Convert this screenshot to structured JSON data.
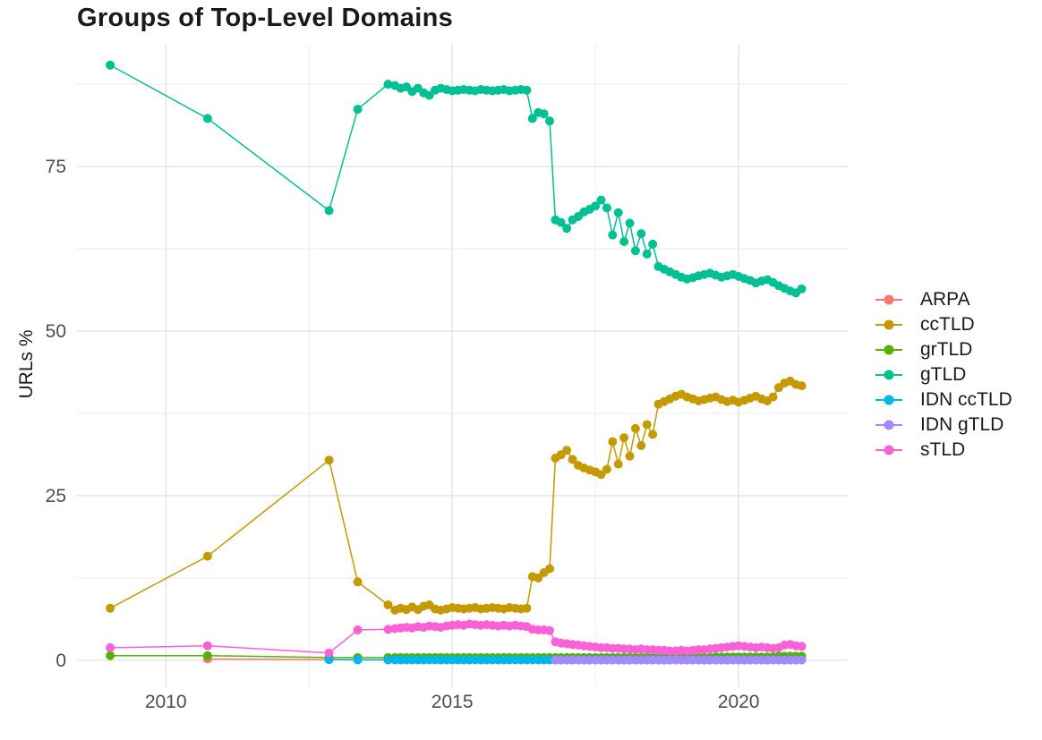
{
  "colors": {
    "background": "#ffffff",
    "grid_major": "#e2e2e2",
    "grid_minor": "#ededed",
    "tick_label": "#4d4d4d",
    "title": "#1a1a1a",
    "axis_title": "#1a1a1a"
  },
  "chart_data": {
    "type": "line",
    "title": "Groups of Top-Level Domains",
    "xlabel": "",
    "ylabel": "URLs %",
    "grid": true,
    "legend_position": "right",
    "x_ticks": [
      2010,
      2015,
      2020
    ],
    "x_minor_ticks": [
      2012.5,
      2017.5
    ],
    "y_ticks": [
      0,
      25,
      50,
      75
    ],
    "y_minor_ticks": [
      12.5,
      37.5,
      62.5,
      87.5
    ],
    "xlim": [
      2008.45,
      2021.92
    ],
    "ylim": [
      -4.1,
      93.5
    ],
    "series": [
      {
        "name": "ARPA",
        "color": "#F8766D",
        "x": [
          2010.73,
          2012.85,
          2014.0,
          2014.1,
          2014.2,
          2014.3,
          2014.4,
          2014.5,
          2014.6,
          2014.7,
          2014.8,
          2014.9,
          2015.0,
          2015.1,
          2015.2,
          2015.3,
          2015.4,
          2015.5,
          2015.6,
          2015.7,
          2015.8,
          2015.9,
          2016.0,
          2016.1,
          2016.2,
          2016.3,
          2016.4,
          2016.5,
          2016.6,
          2016.7,
          2016.8,
          2016.9,
          2017.0,
          2017.1,
          2017.2,
          2017.3,
          2017.4,
          2017.5,
          2017.6,
          2017.7,
          2017.8,
          2017.9,
          2018.0,
          2018.1,
          2018.2,
          2018.3,
          2018.4,
          2018.5,
          2018.6,
          2018.7,
          2018.8,
          2018.9,
          2019.0,
          2019.1,
          2019.2,
          2019.3,
          2019.4,
          2019.5,
          2019.6,
          2019.7,
          2019.8,
          2019.9,
          2020.0,
          2020.1,
          2020.2,
          2020.3,
          2020.4,
          2020.5,
          2020.6,
          2020.7,
          2020.8,
          2020.9,
          2021.0,
          2021.1
        ],
        "y": [
          0.2,
          0.1,
          0.1,
          0.1,
          0.1,
          0.1,
          0.1,
          0.1,
          0.1,
          0.1,
          0.1,
          0.1,
          0.1,
          0.1,
          0.1,
          0.1,
          0.1,
          0.1,
          0.1,
          0.1,
          0.1,
          0.1,
          0.1,
          0.1,
          0.1,
          0.1,
          0.1,
          0.1,
          0.1,
          0.1,
          0.1,
          0.1,
          0.1,
          0.1,
          0.1,
          0.1,
          0.1,
          0.1,
          0.1,
          0.1,
          0.1,
          0.1,
          0.1,
          0.1,
          0.1,
          0.1,
          0.1,
          0.1,
          0.1,
          0.1,
          0.1,
          0.1,
          0.1,
          0.1,
          0.1,
          0.1,
          0.1,
          0.1,
          0.1,
          0.1,
          0.1,
          0.1,
          0.1,
          0.1,
          0.1,
          0.1,
          0.1,
          0.1,
          0.1,
          0.1,
          0.1,
          0.1,
          0.1,
          0.1
        ]
      },
      {
        "name": "ccTLD",
        "color": "#C49A00",
        "x": [
          2009.03,
          2010.73,
          2012.85,
          2013.35,
          2013.88,
          2014.0,
          2014.1,
          2014.2,
          2014.3,
          2014.4,
          2014.5,
          2014.6,
          2014.7,
          2014.8,
          2014.9,
          2015.0,
          2015.1,
          2015.2,
          2015.3,
          2015.4,
          2015.5,
          2015.6,
          2015.7,
          2015.8,
          2015.9,
          2016.0,
          2016.1,
          2016.2,
          2016.3,
          2016.4,
          2016.5,
          2016.6,
          2016.7,
          2016.8,
          2016.9,
          2017.0,
          2017.1,
          2017.2,
          2017.3,
          2017.4,
          2017.5,
          2017.6,
          2017.7,
          2017.8,
          2017.9,
          2018.0,
          2018.1,
          2018.2,
          2018.3,
          2018.4,
          2018.5,
          2018.6,
          2018.7,
          2018.8,
          2018.9,
          2019.0,
          2019.1,
          2019.2,
          2019.3,
          2019.4,
          2019.5,
          2019.6,
          2019.7,
          2019.8,
          2019.9,
          2020.0,
          2020.1,
          2020.2,
          2020.3,
          2020.4,
          2020.5,
          2020.6,
          2020.7,
          2020.8,
          2020.9,
          2021.0,
          2021.1
        ],
        "y": [
          7.9,
          15.8,
          30.4,
          11.9,
          8.4,
          7.6,
          7.9,
          7.7,
          8.1,
          7.7,
          8.2,
          8.4,
          7.8,
          7.6,
          7.8,
          8.0,
          7.9,
          7.8,
          7.9,
          8.0,
          7.8,
          7.9,
          8.0,
          7.9,
          7.8,
          8.0,
          7.9,
          7.8,
          7.9,
          12.7,
          12.5,
          13.3,
          13.9,
          30.7,
          31.2,
          31.9,
          30.5,
          29.6,
          29.2,
          28.9,
          28.6,
          28.2,
          29.0,
          33.2,
          29.8,
          33.8,
          31.0,
          35.2,
          32.6,
          35.8,
          34.3,
          38.9,
          39.3,
          39.7,
          40.1,
          40.4,
          40.0,
          39.7,
          39.4,
          39.6,
          39.8,
          40.0,
          39.6,
          39.3,
          39.5,
          39.2,
          39.5,
          39.8,
          40.1,
          39.7,
          39.4,
          40.0,
          41.4,
          42.1,
          42.4,
          41.9,
          41.7
        ]
      },
      {
        "name": "grTLD",
        "color": "#53B400",
        "x": [
          2009.03,
          2010.73,
          2012.85,
          2013.35,
          2013.88,
          2014.0,
          2014.1,
          2014.2,
          2014.3,
          2014.4,
          2014.5,
          2014.6,
          2014.7,
          2014.8,
          2014.9,
          2015.0,
          2015.1,
          2015.2,
          2015.3,
          2015.4,
          2015.5,
          2015.6,
          2015.7,
          2015.8,
          2015.9,
          2016.0,
          2016.1,
          2016.2,
          2016.3,
          2016.4,
          2016.5,
          2016.6,
          2016.7,
          2016.8,
          2016.9,
          2017.0,
          2017.1,
          2017.2,
          2017.3,
          2017.4,
          2017.5,
          2017.6,
          2017.7,
          2017.8,
          2017.9,
          2018.0,
          2018.1,
          2018.2,
          2018.3,
          2018.4,
          2018.5,
          2018.6,
          2018.7,
          2018.8,
          2018.9,
          2019.0,
          2019.1,
          2019.2,
          2019.3,
          2019.4,
          2019.5,
          2019.6,
          2019.7,
          2019.8,
          2019.9,
          2020.0,
          2020.1,
          2020.2,
          2020.3,
          2020.4,
          2020.5,
          2020.6,
          2020.7,
          2020.8,
          2020.9,
          2021.0,
          2021.1
        ],
        "y": [
          0.7,
          0.7,
          0.4,
          0.4,
          0.4,
          0.4,
          0.4,
          0.4,
          0.4,
          0.4,
          0.4,
          0.4,
          0.4,
          0.4,
          0.4,
          0.4,
          0.4,
          0.4,
          0.4,
          0.4,
          0.4,
          0.4,
          0.4,
          0.4,
          0.4,
          0.4,
          0.4,
          0.4,
          0.4,
          0.4,
          0.4,
          0.4,
          0.4,
          0.4,
          0.4,
          0.4,
          0.4,
          0.4,
          0.4,
          0.4,
          0.4,
          0.4,
          0.4,
          0.4,
          0.4,
          0.4,
          0.4,
          0.4,
          0.4,
          0.4,
          0.4,
          0.4,
          0.4,
          0.4,
          0.4,
          0.4,
          0.4,
          0.4,
          0.4,
          0.4,
          0.4,
          0.5,
          0.5,
          0.5,
          0.5,
          0.5,
          0.5,
          0.5,
          0.5,
          0.5,
          0.5,
          0.5,
          0.6,
          0.6,
          0.6,
          0.6,
          0.6
        ]
      },
      {
        "name": "gTLD",
        "color": "#00C094",
        "x": [
          2009.03,
          2010.73,
          2012.85,
          2013.35,
          2013.88,
          2014.0,
          2014.1,
          2014.2,
          2014.3,
          2014.4,
          2014.5,
          2014.6,
          2014.7,
          2014.8,
          2014.9,
          2015.0,
          2015.1,
          2015.2,
          2015.3,
          2015.4,
          2015.5,
          2015.6,
          2015.7,
          2015.8,
          2015.9,
          2016.0,
          2016.1,
          2016.2,
          2016.3,
          2016.4,
          2016.5,
          2016.6,
          2016.7,
          2016.8,
          2016.9,
          2017.0,
          2017.1,
          2017.2,
          2017.3,
          2017.4,
          2017.5,
          2017.6,
          2017.7,
          2017.8,
          2017.9,
          2018.0,
          2018.1,
          2018.2,
          2018.3,
          2018.4,
          2018.5,
          2018.6,
          2018.7,
          2018.8,
          2018.9,
          2019.0,
          2019.1,
          2019.2,
          2019.3,
          2019.4,
          2019.5,
          2019.6,
          2019.7,
          2019.8,
          2019.9,
          2020.0,
          2020.1,
          2020.2,
          2020.3,
          2020.4,
          2020.5,
          2020.6,
          2020.7,
          2020.8,
          2020.9,
          2021.0,
          2021.1
        ],
        "y": [
          90.4,
          82.3,
          68.3,
          83.7,
          87.5,
          87.3,
          86.9,
          87.1,
          86.4,
          86.9,
          86.2,
          85.8,
          86.6,
          86.9,
          86.7,
          86.5,
          86.6,
          86.7,
          86.6,
          86.5,
          86.7,
          86.6,
          86.5,
          86.6,
          86.7,
          86.5,
          86.6,
          86.7,
          86.6,
          82.3,
          83.2,
          83.0,
          81.9,
          66.9,
          66.5,
          65.6,
          66.9,
          67.4,
          68.1,
          68.5,
          69.0,
          69.9,
          68.7,
          64.6,
          68.0,
          63.6,
          66.4,
          62.2,
          64.8,
          61.7,
          63.2,
          59.8,
          59.4,
          59.0,
          58.6,
          58.2,
          57.9,
          58.1,
          58.4,
          58.6,
          58.8,
          58.5,
          58.2,
          58.4,
          58.6,
          58.3,
          58.0,
          57.7,
          57.3,
          57.6,
          57.8,
          57.4,
          56.9,
          56.5,
          56.1,
          55.8,
          56.4
        ]
      },
      {
        "name": "IDN ccTLD",
        "color": "#00B6EB",
        "x": [
          2012.85,
          2013.35,
          2013.88,
          2014.0,
          2014.1,
          2014.2,
          2014.3,
          2014.4,
          2014.5,
          2014.6,
          2014.7,
          2014.8,
          2014.9,
          2015.0,
          2015.1,
          2015.2,
          2015.3,
          2015.4,
          2015.5,
          2015.6,
          2015.7,
          2015.8,
          2015.9,
          2016.0,
          2016.1,
          2016.2,
          2016.3,
          2016.4,
          2016.5,
          2016.6,
          2016.7,
          2016.8,
          2016.9,
          2017.0,
          2017.1,
          2017.2,
          2017.3,
          2017.4,
          2017.5,
          2017.6,
          2017.7,
          2017.8,
          2017.9,
          2018.0,
          2018.1,
          2018.2,
          2018.3,
          2018.4,
          2018.5,
          2018.6,
          2018.7,
          2018.8,
          2018.9,
          2019.0,
          2019.1,
          2019.2,
          2019.3,
          2019.4,
          2019.5,
          2019.6,
          2019.7,
          2019.8,
          2019.9,
          2020.0,
          2020.1,
          2020.2,
          2020.3,
          2020.4,
          2020.5,
          2020.6,
          2020.7,
          2020.8,
          2020.9,
          2021.0,
          2021.1
        ],
        "y": [
          0.1,
          0.05,
          0.05,
          0.05,
          0.05,
          0.05,
          0.05,
          0.05,
          0.05,
          0.05,
          0.05,
          0.05,
          0.05,
          0.05,
          0.05,
          0.05,
          0.05,
          0.05,
          0.05,
          0.05,
          0.05,
          0.05,
          0.05,
          0.05,
          0.05,
          0.05,
          0.05,
          0.05,
          0.05,
          0.05,
          0.05,
          0.05,
          0.05,
          0.05,
          0.05,
          0.05,
          0.05,
          0.05,
          0.05,
          0.05,
          0.05,
          0.05,
          0.05,
          0.05,
          0.05,
          0.05,
          0.05,
          0.05,
          0.05,
          0.05,
          0.05,
          0.05,
          0.05,
          0.05,
          0.05,
          0.05,
          0.05,
          0.05,
          0.05,
          0.05,
          0.05,
          0.05,
          0.05,
          0.05,
          0.05,
          0.05,
          0.05,
          0.05,
          0.05,
          0.05,
          0.05,
          0.05,
          0.05,
          0.05,
          0.05
        ]
      },
      {
        "name": "IDN gTLD",
        "color": "#A58AFF",
        "x": [
          2016.8,
          2016.9,
          2017.0,
          2017.1,
          2017.2,
          2017.3,
          2017.4,
          2017.5,
          2017.6,
          2017.7,
          2017.8,
          2017.9,
          2018.0,
          2018.1,
          2018.2,
          2018.3,
          2018.4,
          2018.5,
          2018.6,
          2018.7,
          2018.8,
          2018.9,
          2019.0,
          2019.1,
          2019.2,
          2019.3,
          2019.4,
          2019.5,
          2019.6,
          2019.7,
          2019.8,
          2019.9,
          2020.0,
          2020.1,
          2020.2,
          2020.3,
          2020.4,
          2020.5,
          2020.6,
          2020.7,
          2020.8,
          2020.9,
          2021.0,
          2021.1
        ],
        "y": [
          0.03,
          0.03,
          0.03,
          0.03,
          0.03,
          0.03,
          0.03,
          0.03,
          0.03,
          0.03,
          0.03,
          0.03,
          0.03,
          0.03,
          0.03,
          0.03,
          0.03,
          0.03,
          0.03,
          0.03,
          0.03,
          0.03,
          0.03,
          0.03,
          0.03,
          0.03,
          0.03,
          0.03,
          0.03,
          0.03,
          0.03,
          0.03,
          0.03,
          0.03,
          0.03,
          0.03,
          0.03,
          0.03,
          0.03,
          0.03,
          0.03,
          0.03,
          0.03,
          0.03
        ]
      },
      {
        "name": "sTLD",
        "color": "#FB61D7",
        "x": [
          2009.03,
          2010.73,
          2012.85,
          2013.35,
          2013.88,
          2014.0,
          2014.1,
          2014.2,
          2014.3,
          2014.4,
          2014.5,
          2014.6,
          2014.7,
          2014.8,
          2014.9,
          2015.0,
          2015.1,
          2015.2,
          2015.3,
          2015.4,
          2015.5,
          2015.6,
          2015.7,
          2015.8,
          2015.9,
          2016.0,
          2016.1,
          2016.2,
          2016.3,
          2016.4,
          2016.5,
          2016.6,
          2016.7,
          2016.8,
          2016.9,
          2017.0,
          2017.1,
          2017.2,
          2017.3,
          2017.4,
          2017.5,
          2017.6,
          2017.7,
          2017.8,
          2017.9,
          2018.0,
          2018.1,
          2018.2,
          2018.3,
          2018.4,
          2018.5,
          2018.6,
          2018.7,
          2018.8,
          2018.9,
          2019.0,
          2019.1,
          2019.2,
          2019.3,
          2019.4,
          2019.5,
          2019.6,
          2019.7,
          2019.8,
          2019.9,
          2020.0,
          2020.1,
          2020.2,
          2020.3,
          2020.4,
          2020.5,
          2020.6,
          2020.7,
          2020.8,
          2020.9,
          2021.0,
          2021.1
        ],
        "y": [
          1.9,
          2.2,
          1.1,
          4.6,
          4.7,
          4.8,
          4.9,
          5.0,
          4.9,
          5.1,
          5.0,
          5.2,
          5.1,
          5.0,
          5.2,
          5.3,
          5.4,
          5.3,
          5.5,
          5.4,
          5.3,
          5.4,
          5.3,
          5.2,
          5.3,
          5.2,
          5.3,
          5.2,
          5.1,
          4.7,
          4.6,
          4.6,
          4.5,
          2.8,
          2.6,
          2.5,
          2.4,
          2.3,
          2.2,
          2.1,
          2.0,
          1.9,
          1.9,
          1.8,
          1.8,
          1.7,
          1.7,
          1.6,
          1.7,
          1.6,
          1.6,
          1.5,
          1.5,
          1.4,
          1.4,
          1.5,
          1.4,
          1.5,
          1.6,
          1.6,
          1.7,
          1.8,
          1.9,
          2.0,
          2.1,
          2.2,
          2.1,
          2.0,
          1.9,
          2.0,
          1.9,
          1.8,
          1.9,
          2.3,
          2.4,
          2.2,
          2.1
        ]
      }
    ]
  }
}
